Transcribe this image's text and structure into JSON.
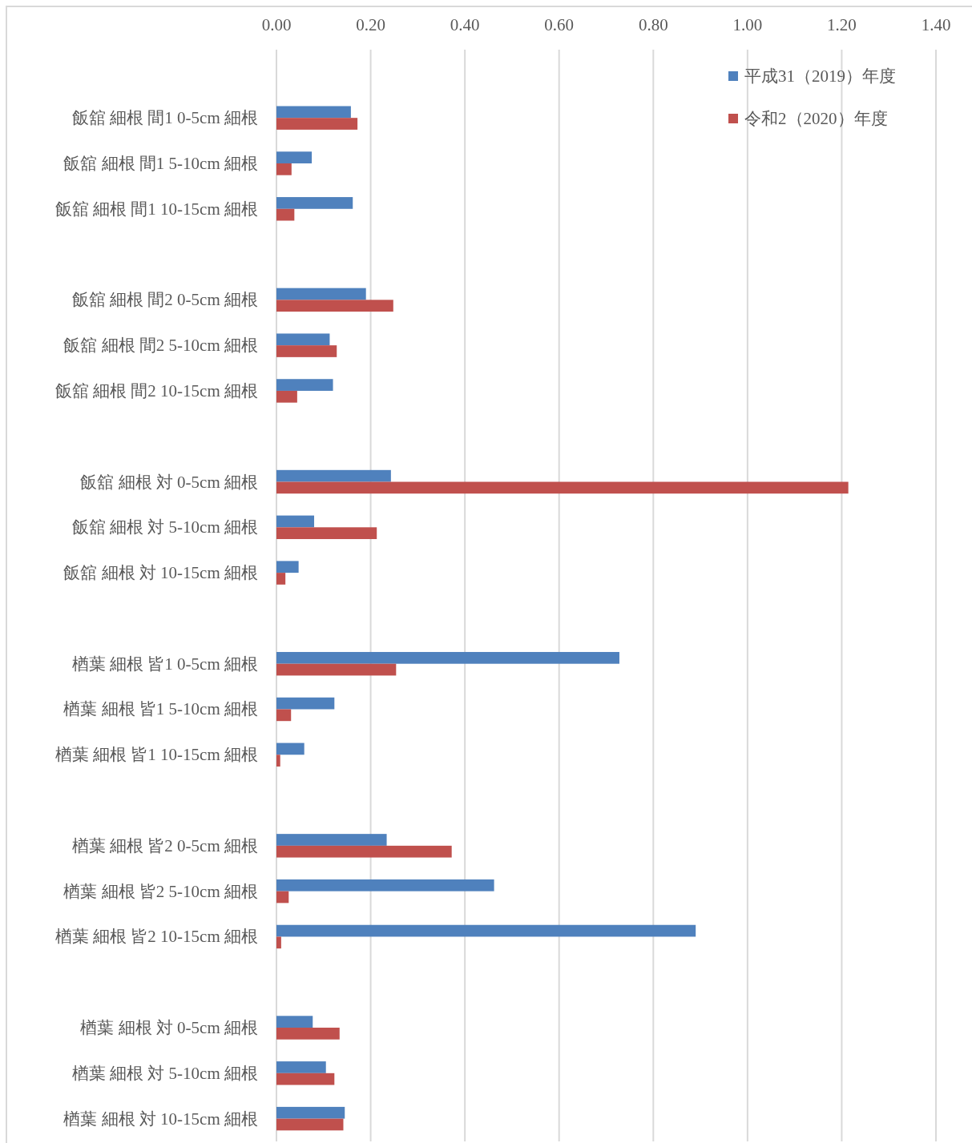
{
  "chart_data": {
    "type": "bar",
    "orientation": "horizontal",
    "categories": [
      null,
      "飯舘 細根 間1 0-5cm 細根",
      "飯舘 細根 間1 5-10cm 細根",
      "飯舘 細根 間1 10-15cm 細根",
      null,
      "飯舘 細根 間2 0-5cm 細根",
      "飯舘 細根 間2 5-10cm 細根",
      "飯舘 細根 間2 10-15cm 細根",
      null,
      "飯舘 細根 対 0-5cm 細根",
      "飯舘 細根 対 5-10cm 細根",
      "飯舘 細根 対 10-15cm 細根",
      null,
      "楢葉 細根 皆1 0-5cm 細根",
      "楢葉 細根 皆1 5-10cm 細根",
      "楢葉 細根 皆1 10-15cm 細根",
      null,
      "楢葉 細根 皆2 0-5cm 細根",
      "楢葉 細根 皆2 5-10cm 細根",
      "楢葉 細根 皆2 10-15cm 細根",
      null,
      "楢葉 細根 対 0-5cm 細根",
      "楢葉 細根 対 5-10cm 細根",
      "楢葉 細根 対 10-15cm 細根"
    ],
    "series": [
      {
        "name": "平成31（2019）年度",
        "color": "#4f81bd",
        "values": [
          null,
          0.158,
          0.075,
          0.162,
          null,
          0.19,
          0.113,
          0.12,
          null,
          0.243,
          0.08,
          0.047,
          null,
          0.728,
          0.123,
          0.059,
          null,
          0.234,
          0.462,
          0.89,
          null,
          0.077,
          0.105,
          0.145
        ]
      },
      {
        "name": "令和2（2020）年度",
        "color": "#c0504d",
        "values": [
          null,
          0.172,
          0.032,
          0.038,
          null,
          0.248,
          0.128,
          0.044,
          null,
          1.214,
          0.213,
          0.019,
          null,
          0.254,
          0.031,
          0.008,
          null,
          0.372,
          0.026,
          0.01,
          null,
          0.134,
          0.123,
          0.142
        ]
      }
    ],
    "xlim": [
      0,
      1.4
    ],
    "xticks": [
      {
        "value": 0,
        "label": "0.00"
      },
      {
        "value": 0.2,
        "label": "0.20"
      },
      {
        "value": 0.4,
        "label": "0.40"
      },
      {
        "value": 0.6,
        "label": "0.60"
      },
      {
        "value": 0.8,
        "label": "0.80"
      },
      {
        "value": 1.0,
        "label": "1.00"
      },
      {
        "value": 1.2,
        "label": "1.20"
      },
      {
        "value": 1.4,
        "label": "1.40"
      }
    ],
    "grid": "x",
    "legend": "top right"
  }
}
